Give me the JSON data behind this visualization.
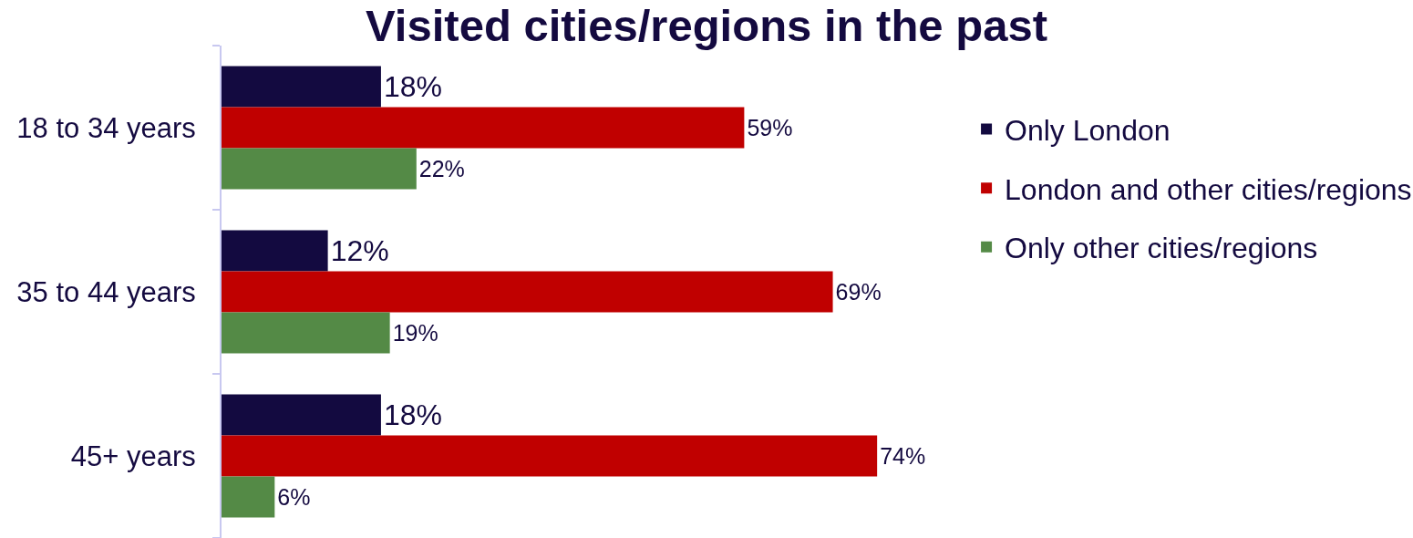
{
  "chart_data": {
    "type": "bar",
    "orientation": "horizontal",
    "title": "Visited cities/regions in the past",
    "categories": [
      "18 to 34 years",
      "35 to 44 years",
      "45+ years"
    ],
    "series": [
      {
        "name": "Only London",
        "color": "#130a40",
        "values": [
          18,
          12,
          18
        ],
        "value_labels": [
          "18%",
          "12%",
          "18%"
        ]
      },
      {
        "name": "London and other cities/regions",
        "color": "#c00000",
        "values": [
          59,
          69,
          74
        ],
        "value_labels": [
          "59%",
          "69%",
          "74%"
        ]
      },
      {
        "name": "Only other cities/regions",
        "color": "#548a46",
        "values": [
          22,
          19,
          6
        ],
        "value_labels": [
          "22%",
          "19%",
          "6%"
        ]
      }
    ],
    "legend": "right",
    "tick_labels": "y"
  }
}
